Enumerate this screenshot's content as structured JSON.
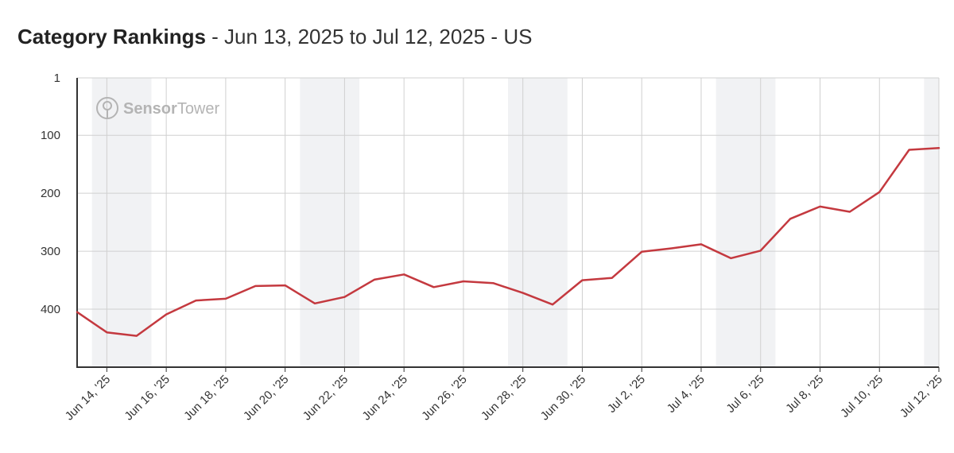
{
  "header": {
    "title_strong": "Category Rankings",
    "title_rest": " - Jun 13, 2025 to Jul 12, 2025 - US"
  },
  "watermark": {
    "brand_bold": "Sensor",
    "brand_light": "Tower",
    "icon": "sensor-tower-logo-icon"
  },
  "colors": {
    "line": "#c4393f",
    "grid": "#d0d0d0",
    "weekend_band": "#f1f2f4",
    "axis": "#333333"
  },
  "chart_data": {
    "type": "line",
    "title": "Category Rankings - Jun 13, 2025 to Jul 12, 2025 - US",
    "xlabel": "",
    "ylabel": "",
    "y_inverted": true,
    "ylim": [
      1,
      500
    ],
    "y_ticks": [
      1,
      100,
      200,
      300,
      400
    ],
    "x": [
      "2025-06-13",
      "2025-06-14",
      "2025-06-15",
      "2025-06-16",
      "2025-06-17",
      "2025-06-18",
      "2025-06-19",
      "2025-06-20",
      "2025-06-21",
      "2025-06-22",
      "2025-06-23",
      "2025-06-24",
      "2025-06-25",
      "2025-06-26",
      "2025-06-27",
      "2025-06-28",
      "2025-06-29",
      "2025-06-30",
      "2025-07-01",
      "2025-07-02",
      "2025-07-03",
      "2025-07-04",
      "2025-07-05",
      "2025-07-06",
      "2025-07-07",
      "2025-07-08",
      "2025-07-09",
      "2025-07-10",
      "2025-07-11",
      "2025-07-12"
    ],
    "x_tick_labels": [
      {
        "date": "2025-06-14",
        "label": "Jun 14, '25"
      },
      {
        "date": "2025-06-16",
        "label": "Jun 16, '25"
      },
      {
        "date": "2025-06-18",
        "label": "Jun 18, '25"
      },
      {
        "date": "2025-06-20",
        "label": "Jun 20, '25"
      },
      {
        "date": "2025-06-22",
        "label": "Jun 22, '25"
      },
      {
        "date": "2025-06-24",
        "label": "Jun 24, '25"
      },
      {
        "date": "2025-06-26",
        "label": "Jun 26, '25"
      },
      {
        "date": "2025-06-28",
        "label": "Jun 28, '25"
      },
      {
        "date": "2025-06-30",
        "label": "Jun 30, '25"
      },
      {
        "date": "2025-07-02",
        "label": "Jul 2, '25"
      },
      {
        "date": "2025-07-04",
        "label": "Jul 4, '25"
      },
      {
        "date": "2025-07-06",
        "label": "Jul 6, '25"
      },
      {
        "date": "2025-07-08",
        "label": "Jul 8, '25"
      },
      {
        "date": "2025-07-10",
        "label": "Jul 10, '25"
      },
      {
        "date": "2025-07-12",
        "label": "Jul 12, '25"
      }
    ],
    "weekend_bands": [
      [
        "2025-06-14",
        "2025-06-15"
      ],
      [
        "2025-06-21",
        "2025-06-22"
      ],
      [
        "2025-06-28",
        "2025-06-29"
      ],
      [
        "2025-07-05",
        "2025-07-06"
      ],
      [
        "2025-07-12",
        "2025-07-12"
      ]
    ],
    "series": [
      {
        "values": [
          405,
          440,
          446,
          409,
          385,
          382,
          360,
          359,
          390,
          379,
          349,
          340,
          362,
          352,
          355,
          372,
          392,
          350,
          346,
          301,
          295,
          288,
          312,
          299,
          244,
          223,
          232,
          198,
          125,
          122
        ]
      }
    ],
    "grid": true,
    "legend": "none"
  }
}
